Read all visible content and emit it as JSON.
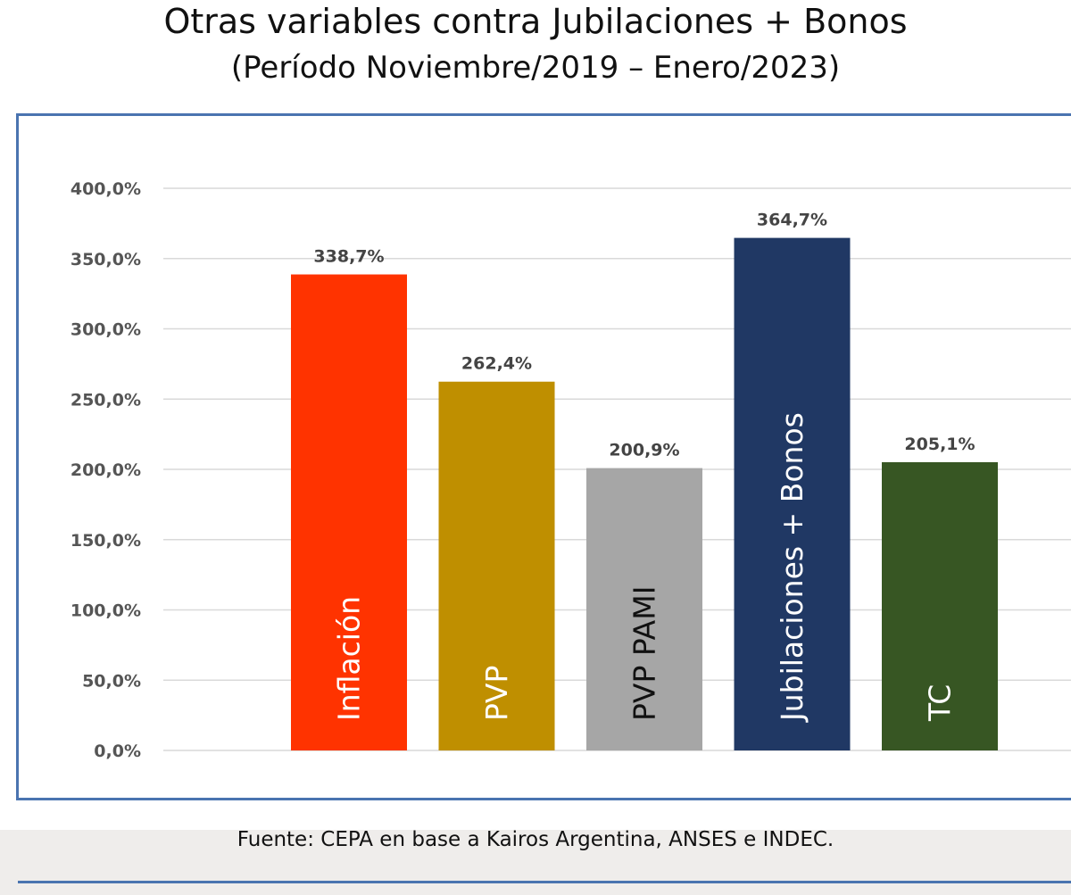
{
  "header": {
    "title": "Otras variables contra Jubilaciones + Bonos",
    "subtitle": "(Período Noviembre/2019 – Enero/2023)"
  },
  "footer": {
    "source": "Fuente: CEPA en base a Kairos Argentina, ANSES e INDEC."
  },
  "chart_data": {
    "type": "bar",
    "categories": [
      "Inflación",
      "PVP",
      "PVP PAMI",
      "Jubilaciones + Bonos",
      "TC"
    ],
    "values": [
      338.7,
      262.4,
      200.9,
      364.7,
      205.1
    ],
    "value_labels": [
      "338,7%",
      "262,4%",
      "200,9%",
      "364,7%",
      "205,1%"
    ],
    "colors": [
      "#ff3300",
      "#bf8f00",
      "#a6a6a6",
      "#203864",
      "#375623"
    ],
    "label_colors": [
      "#ffffff",
      "#ffffff",
      "#111111",
      "#ffffff",
      "#ffffff"
    ],
    "ylim": [
      0,
      400
    ],
    "yticks": [
      0,
      50,
      100,
      150,
      200,
      250,
      300,
      350,
      400
    ],
    "ytick_labels": [
      "0,0%",
      "50,0%",
      "100,0%",
      "150,0%",
      "200,0%",
      "250,0%",
      "300,0%",
      "350,0%",
      "400,0%"
    ],
    "grid": true,
    "legend": "none",
    "title": "",
    "xlabel": "",
    "ylabel": ""
  }
}
